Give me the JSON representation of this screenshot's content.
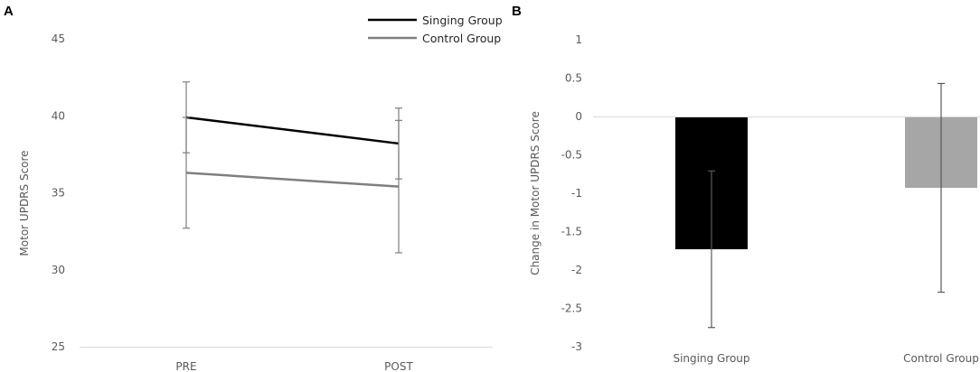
{
  "chart_data": [
    {
      "panel_label": "A",
      "type": "line",
      "categories": [
        "PRE",
        "POST"
      ],
      "ylabel": "Motor  UPDRS Score",
      "ylim": [
        25,
        45
      ],
      "yticks": [
        25,
        30,
        35,
        40,
        45
      ],
      "grid": false,
      "legend_position": "top-right",
      "series": [
        {
          "name": "Singing Group",
          "color": "#000000",
          "values": [
            39.9,
            38.2
          ],
          "error": [
            2.3,
            2.3
          ]
        },
        {
          "name": "Control Group",
          "color": "#7f7f7f",
          "values": [
            36.3,
            35.4
          ],
          "error": [
            3.6,
            4.3
          ]
        }
      ]
    },
    {
      "panel_label": "B",
      "type": "bar",
      "categories": [
        "Singing Group",
        "Control Group"
      ],
      "ylabel": "Change in Motor  UPDRS Score",
      "ylim": [
        -3,
        1
      ],
      "yticks": [
        -3,
        -2.5,
        -2,
        -1.5,
        -1,
        -0.5,
        0,
        0.5,
        1
      ],
      "ytick_labels": [
        "-3",
        "-2.5",
        "-2",
        "-1.5",
        "-1",
        "-0.5",
        "0",
        "0.5",
        "1"
      ],
      "grid": false,
      "values": [
        -1.73,
        -0.93
      ],
      "error": [
        1.02,
        1.36
      ],
      "colors": [
        "#000000",
        "#a6a6a6"
      ]
    }
  ]
}
